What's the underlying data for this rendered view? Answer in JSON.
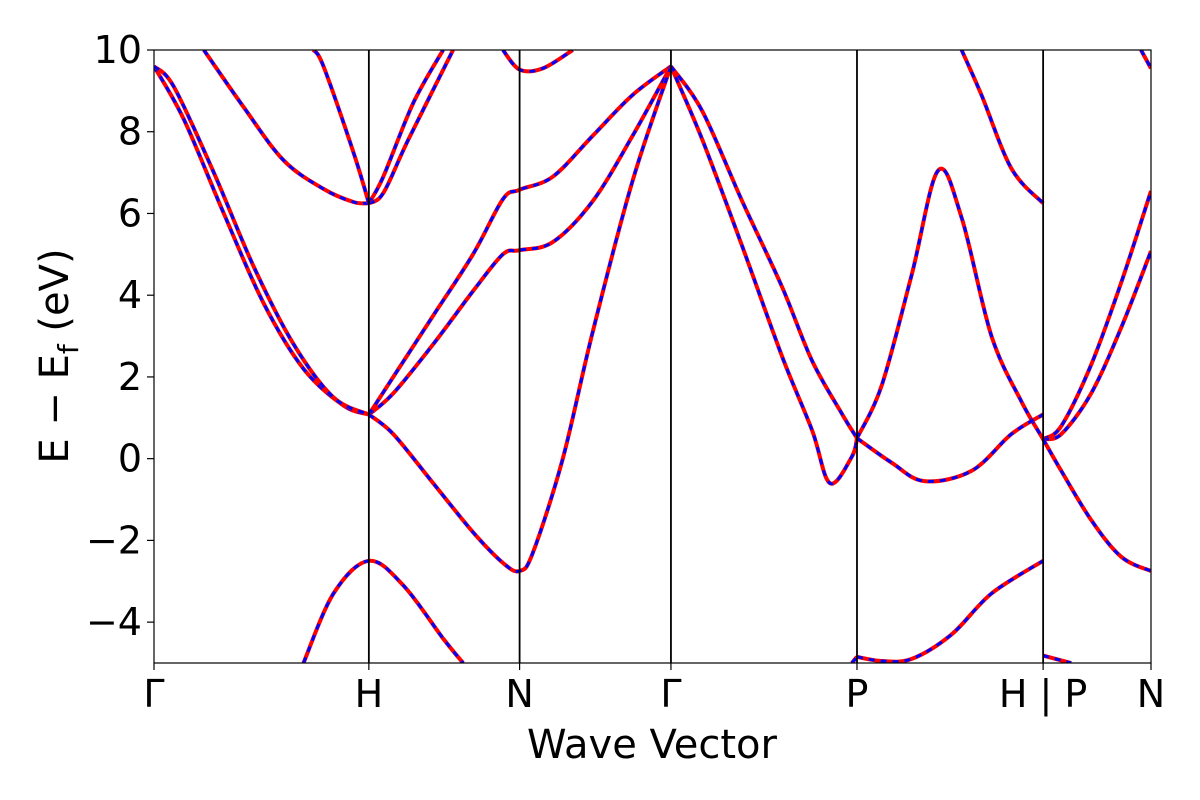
{
  "chart_data": {
    "type": "line",
    "xlabel": "Wave Vector",
    "ylabel_parts": [
      "E − E",
      "f",
      " (eV)"
    ],
    "ylim": [
      -5,
      10
    ],
    "yticks": [
      {
        "value": -4,
        "label": "−4"
      },
      {
        "value": -2,
        "label": "−2"
      },
      {
        "value": 0,
        "label": "0"
      },
      {
        "value": 2,
        "label": "2"
      },
      {
        "value": 4,
        "label": "4"
      },
      {
        "value": 6,
        "label": "6"
      },
      {
        "value": 8,
        "label": "8"
      },
      {
        "value": 10,
        "label": "10"
      }
    ],
    "xlim": [
      0,
      1
    ],
    "kpoints": [
      {
        "x": 0.0,
        "label": "Γ"
      },
      {
        "x": 0.2155,
        "label": "H"
      },
      {
        "x": 0.3667,
        "label": "N"
      },
      {
        "x": 0.5185,
        "label": "Γ"
      },
      {
        "x": 0.7051,
        "label": "P"
      },
      {
        "x": 0.8918,
        "label": "H | P"
      },
      {
        "x": 1.0,
        "label": "N"
      }
    ],
    "grid": false,
    "colors": {
      "solid": "#ff0000",
      "dashed": "#0000ff",
      "kline": "#000000"
    },
    "styles": [
      {
        "line": "solid",
        "color": "#ff0000"
      },
      {
        "line": "dashed",
        "color": "#0000ff"
      }
    ],
    "bands": [
      {
        "points": [
          [
            0.0,
            9.6
          ],
          [
            0.03,
            8.3
          ],
          [
            0.07,
            6.0
          ],
          [
            0.11,
            3.8
          ],
          [
            0.15,
            2.2
          ],
          [
            0.19,
            1.3
          ],
          [
            0.2155,
            1.08
          ]
        ]
      },
      {
        "points": [
          [
            0.0,
            9.6
          ],
          [
            0.02,
            9.1
          ],
          [
            0.06,
            7.0
          ],
          [
            0.1,
            4.7
          ],
          [
            0.14,
            2.8
          ],
          [
            0.18,
            1.5
          ],
          [
            0.2155,
            1.08
          ]
        ]
      },
      {
        "points": [
          [
            0.05,
            10.0
          ],
          [
            0.09,
            8.6
          ],
          [
            0.13,
            7.3
          ],
          [
            0.17,
            6.6
          ],
          [
            0.2,
            6.28
          ],
          [
            0.2155,
            6.25
          ]
        ]
      },
      {
        "points": [
          [
            0.2155,
            1.08
          ],
          [
            0.24,
            1.6
          ],
          [
            0.28,
            2.8
          ],
          [
            0.32,
            4.1
          ],
          [
            0.35,
            5.0
          ],
          [
            0.3667,
            5.1
          ],
          [
            0.4,
            5.3
          ],
          [
            0.44,
            6.3
          ],
          [
            0.48,
            7.9
          ],
          [
            0.5185,
            9.6
          ]
        ]
      },
      {
        "points": [
          [
            0.2155,
            1.08
          ],
          [
            0.24,
            2.0
          ],
          [
            0.28,
            3.5
          ],
          [
            0.32,
            5.0
          ],
          [
            0.35,
            6.35
          ],
          [
            0.3667,
            6.58
          ],
          [
            0.4,
            6.9
          ],
          [
            0.44,
            7.9
          ],
          [
            0.48,
            8.9
          ],
          [
            0.5185,
            9.6
          ]
        ]
      },
      {
        "points": [
          [
            0.2155,
            1.08
          ],
          [
            0.24,
            0.6
          ],
          [
            0.28,
            -0.6
          ],
          [
            0.32,
            -1.8
          ],
          [
            0.35,
            -2.55
          ],
          [
            0.3667,
            -2.75
          ],
          [
            0.38,
            -2.3
          ],
          [
            0.41,
            0.0
          ],
          [
            0.44,
            3.1
          ],
          [
            0.48,
            6.8
          ],
          [
            0.5185,
            9.6
          ]
        ]
      },
      {
        "points": [
          [
            0.2155,
            6.25
          ],
          [
            0.23,
            6.9
          ],
          [
            0.26,
            8.7
          ],
          [
            0.29,
            10.0
          ]
        ]
      },
      {
        "points": [
          [
            0.2155,
            6.25
          ],
          [
            0.23,
            6.5
          ],
          [
            0.255,
            7.8
          ],
          [
            0.3,
            10.0
          ]
        ]
      },
      {
        "points": [
          [
            0.2155,
            6.25
          ],
          [
            0.2,
            7.5
          ],
          [
            0.17,
            9.6
          ],
          [
            0.16,
            10.0
          ]
        ]
      },
      {
        "points": [
          [
            0.15,
            -5.0
          ],
          [
            0.18,
            -3.3
          ],
          [
            0.2155,
            -2.5
          ],
          [
            0.25,
            -3.1
          ],
          [
            0.29,
            -4.4
          ],
          [
            0.31,
            -5.0
          ]
        ]
      },
      {
        "points": [
          [
            0.35,
            10.0
          ],
          [
            0.3667,
            9.52
          ],
          [
            0.39,
            9.55
          ],
          [
            0.42,
            10.0
          ]
        ]
      },
      {
        "points": [
          [
            0.5185,
            9.6
          ],
          [
            0.55,
            7.8
          ],
          [
            0.59,
            5.2
          ],
          [
            0.63,
            2.5
          ],
          [
            0.66,
            0.7
          ],
          [
            0.6779,
            -0.6
          ],
          [
            0.7,
            0.05
          ],
          [
            0.7051,
            0.5
          ]
        ]
      },
      {
        "points": [
          [
            0.5185,
            9.6
          ],
          [
            0.55,
            8.5
          ],
          [
            0.59,
            6.3
          ],
          [
            0.63,
            4.2
          ],
          [
            0.66,
            2.4
          ],
          [
            0.69,
            1.1
          ],
          [
            0.7051,
            0.5
          ]
        ]
      },
      {
        "points": [
          [
            0.7051,
            0.5
          ],
          [
            0.73,
            1.8
          ],
          [
            0.76,
            4.5
          ],
          [
            0.7865,
            7.05
          ],
          [
            0.81,
            5.9
          ],
          [
            0.84,
            3.0
          ],
          [
            0.87,
            1.4
          ],
          [
            0.8918,
            0.48
          ]
        ]
      },
      {
        "points": [
          [
            0.7051,
            0.5
          ],
          [
            0.74,
            -0.1
          ],
          [
            0.7725,
            -0.55
          ],
          [
            0.82,
            -0.3
          ],
          [
            0.86,
            0.6
          ],
          [
            0.8918,
            1.08
          ]
        ]
      },
      {
        "points": [
          [
            0.81,
            10.0
          ],
          [
            0.83,
            8.9
          ],
          [
            0.86,
            7.1
          ],
          [
            0.8918,
            6.25
          ]
        ]
      },
      {
        "points": [
          [
            0.7051,
            -4.85
          ],
          [
            0.73,
            -4.95
          ],
          [
            0.76,
            -4.9
          ],
          [
            0.8,
            -4.3
          ],
          [
            0.84,
            -3.3
          ],
          [
            0.8918,
            -2.5
          ]
        ]
      },
      {
        "points": [
          [
            0.7,
            -5.0
          ],
          [
            0.7051,
            -4.85
          ]
        ]
      },
      {
        "points": [
          [
            0.8918,
            0.48
          ],
          [
            0.91,
            0.8
          ],
          [
            0.94,
            2.3
          ],
          [
            0.97,
            4.3
          ],
          [
            1.0,
            6.55
          ]
        ]
      },
      {
        "points": [
          [
            0.8918,
            0.48
          ],
          [
            0.91,
            0.6
          ],
          [
            0.94,
            1.6
          ],
          [
            0.97,
            3.2
          ],
          [
            1.0,
            5.08
          ]
        ]
      },
      {
        "points": [
          [
            0.8918,
            0.48
          ],
          [
            0.91,
            -0.3
          ],
          [
            0.94,
            -1.5
          ],
          [
            0.97,
            -2.4
          ],
          [
            1.0,
            -2.75
          ]
        ]
      },
      {
        "points": [
          [
            0.8918,
            -4.82
          ],
          [
            0.92,
            -5.0
          ]
        ]
      },
      {
        "points": [
          [
            0.99,
            10.0
          ],
          [
            1.0,
            9.55
          ]
        ]
      }
    ]
  }
}
